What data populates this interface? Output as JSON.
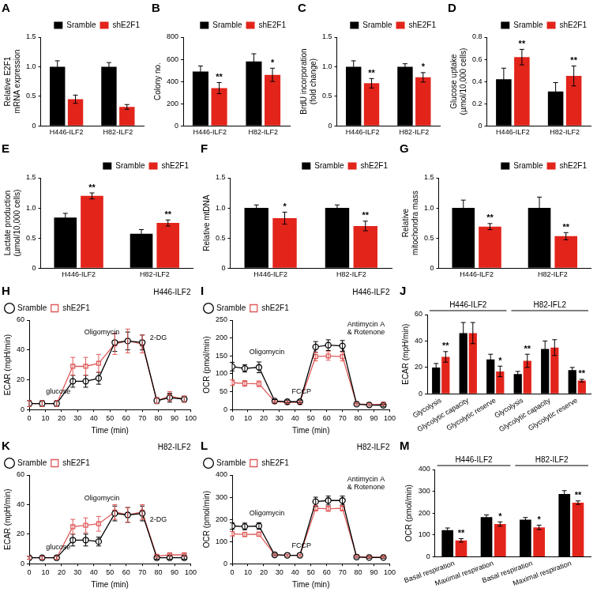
{
  "chart_data": [
    {
      "type": "bar",
      "title": "A",
      "ylabel": [
        "Relative E2F1",
        "mRNA expression"
      ],
      "categories": [
        "H446-ILF2",
        "H82-ILF2"
      ],
      "series": [
        {
          "name": "Sramble",
          "color": "#000000",
          "values": [
            1.0,
            1.0
          ],
          "errors": [
            0.1,
            0.07
          ]
        },
        {
          "name": "shE2F1",
          "color": "#e3241b",
          "values": [
            0.45,
            0.32
          ],
          "errors": [
            0.07,
            0.04
          ]
        }
      ],
      "ylim": [
        0,
        1.5
      ],
      "yticks": [
        0,
        0.5,
        {
          "value": 1,
          "label": "1.0"
        },
        1.5
      ],
      "grid": false,
      "legend": "top-right"
    },
    {
      "type": "bar",
      "title": "B",
      "ylabel": "Colony no.",
      "categories": [
        "H446-ILF2",
        "H82-ILF2"
      ],
      "series": [
        {
          "name": "Sramble",
          "color": "#000000",
          "values": [
            490,
            580
          ],
          "errors": [
            50,
            70
          ]
        },
        {
          "name": "shE2F1",
          "color": "#e3241b",
          "values": [
            340,
            460
          ],
          "errors": [
            50,
            60
          ],
          "annotations": [
            "**",
            "*"
          ]
        }
      ],
      "ylim": [
        0,
        800
      ],
      "yticks": [
        0,
        200,
        400,
        600,
        800
      ],
      "grid": false,
      "legend": "top-right"
    },
    {
      "type": "bar",
      "title": "C",
      "ylabel": [
        "BrdU incorporation",
        "(fold change)"
      ],
      "categories": [
        "H446-ILF2",
        "H82-ILF2"
      ],
      "series": [
        {
          "name": "Sramble",
          "color": "#000000",
          "values": [
            1.0,
            1.0
          ],
          "errors": [
            0.1,
            0.05
          ]
        },
        {
          "name": "shE2F1",
          "color": "#e3241b",
          "values": [
            0.72,
            0.82
          ],
          "errors": [
            0.08,
            0.08
          ],
          "annotations": [
            "**",
            "*"
          ]
        }
      ],
      "ylim": [
        0,
        1.5
      ],
      "yticks": [
        0,
        0.5,
        {
          "value": 1,
          "label": "1.0"
        },
        1.5
      ],
      "grid": false,
      "legend": "top-right"
    },
    {
      "type": "bar",
      "title": "D",
      "ylabel": [
        "Glucose uptake",
        "(µmol/10,000 cells)"
      ],
      "categories": [
        "H446-ILF2",
        "H82-ILF2"
      ],
      "series": [
        {
          "name": "Sramble",
          "color": "#000000",
          "values": [
            0.42,
            0.31
          ],
          "errors": [
            0.1,
            0.08
          ]
        },
        {
          "name": "shE2F1",
          "color": "#e3241b",
          "values": [
            0.62,
            0.45
          ],
          "errors": [
            0.07,
            0.09
          ],
          "annotations": [
            "**",
            "**"
          ]
        }
      ],
      "ylim": [
        0,
        0.8
      ],
      "yticks": [
        0,
        0.2,
        0.4,
        0.6,
        0.8
      ],
      "grid": false,
      "legend": "top-right"
    },
    {
      "type": "bar",
      "title": "E",
      "ylabel": [
        "Lactate production",
        "(µmol/10,000 cells)"
      ],
      "categories": [
        "H446-ILF2",
        "H82-ILF2"
      ],
      "series": [
        {
          "name": "Sramble",
          "color": "#000000",
          "values": [
            0.84,
            0.57
          ],
          "errors": [
            0.07,
            0.07
          ]
        },
        {
          "name": "shE2F1",
          "color": "#e3241b",
          "values": [
            1.2,
            0.75
          ],
          "errors": [
            0.05,
            0.05
          ],
          "annotations": [
            "**",
            "**"
          ]
        }
      ],
      "ylim": [
        0,
        1.5
      ],
      "yticks": [
        0,
        0.5,
        {
          "value": 1,
          "label": "1.0"
        },
        1.5
      ],
      "grid": false,
      "legend": "top-right"
    },
    {
      "type": "bar",
      "title": "F",
      "ylabel": "Relative mtDNA",
      "categories": [
        "H446-ILF2",
        "H82-ILF2"
      ],
      "series": [
        {
          "name": "Sramble",
          "color": "#000000",
          "values": [
            1.0,
            1.0
          ],
          "errors": [
            0.05,
            0.05
          ]
        },
        {
          "name": "shE2F1",
          "color": "#e3241b",
          "values": [
            0.83,
            0.7
          ],
          "errors": [
            0.1,
            0.08
          ],
          "annotations": [
            "*",
            "**"
          ]
        }
      ],
      "ylim": [
        0,
        1.5
      ],
      "yticks": [
        0,
        0.5,
        {
          "value": 1,
          "label": "1.0"
        },
        1.5
      ],
      "grid": false,
      "legend": "top-right"
    },
    {
      "type": "bar",
      "title": "G",
      "ylabel": [
        "Relative",
        "mitochondra mass"
      ],
      "categories": [
        "H446-ILF2",
        "H82-ILF2"
      ],
      "series": [
        {
          "name": "Sramble",
          "color": "#000000",
          "values": [
            1.0,
            1.0
          ],
          "errors": [
            0.13,
            0.18
          ]
        },
        {
          "name": "shE2F1",
          "color": "#e3241b",
          "values": [
            0.69,
            0.53
          ],
          "errors": [
            0.05,
            0.06
          ],
          "annotations": [
            "**",
            "**"
          ]
        }
      ],
      "ylim": [
        0,
        1.5
      ],
      "yticks": [
        0,
        0.5,
        {
          "value": 1,
          "label": "1.0"
        },
        1.5
      ],
      "grid": false,
      "legend": "top-right"
    },
    {
      "type": "line",
      "title": "H",
      "subtitle": "H446-ILF2",
      "ylabel": "ECAR (mpH/min)",
      "xlabel": "Time (min)",
      "x": [
        0,
        8,
        17,
        27,
        35,
        43,
        53,
        61,
        70,
        79,
        87,
        96
      ],
      "series": [
        {
          "name": "Sramble",
          "color": "#000000",
          "marker": "circle",
          "line_style": "solid",
          "values": [
            4,
            4,
            4,
            19,
            19,
            21,
            45,
            46,
            45,
            6,
            8,
            7
          ],
          "errors": [
            2,
            2,
            2,
            4,
            4,
            4,
            6,
            6,
            5,
            2,
            3,
            2
          ]
        },
        {
          "name": "shE2F1",
          "color": "#e05a5a",
          "marker": "square",
          "line_style": "solid",
          "values": [
            4,
            4,
            4,
            29,
            29,
            31,
            44,
            46,
            44,
            6,
            9,
            7
          ],
          "errors": [
            2,
            2,
            2,
            6,
            6,
            6,
            7,
            8,
            6,
            2,
            3,
            2
          ]
        }
      ],
      "annotations": [
        {
          "text": "glucose",
          "x": 18,
          "y": 12
        },
        {
          "text": "Oligomycin",
          "x": 45,
          "y": 52
        },
        {
          "text": "2-DG",
          "x": 80,
          "y": 48
        }
      ],
      "xlim": [
        0,
        100
      ],
      "xticks": [
        0,
        10,
        20,
        30,
        40,
        50,
        60,
        70,
        80,
        90,
        100
      ],
      "ylim": [
        0,
        60
      ],
      "yticks": [
        0,
        20,
        40,
        60
      ],
      "grid": false,
      "legend": "top-left"
    },
    {
      "type": "line",
      "title": "I",
      "subtitle": "H446-ILF2",
      "ylabel": "OCR (pmol/min)",
      "xlabel": "Time (min)",
      "x": [
        0,
        8,
        17,
        27,
        35,
        43,
        53,
        61,
        70,
        79,
        87,
        96
      ],
      "series": [
        {
          "name": "Sramble",
          "color": "#000000",
          "marker": "circle",
          "line_style": "solid",
          "values": [
            120,
            115,
            118,
            24,
            22,
            22,
            175,
            180,
            178,
            15,
            13,
            12
          ],
          "errors": [
            12,
            10,
            15,
            4,
            3,
            3,
            15,
            15,
            15,
            3,
            3,
            3
          ]
        },
        {
          "name": "shE2F1",
          "color": "#e05a5a",
          "marker": "square",
          "line_style": "solid",
          "values": [
            75,
            73,
            72,
            22,
            20,
            20,
            148,
            150,
            148,
            16,
            14,
            15
          ],
          "errors": [
            8,
            8,
            8,
            3,
            3,
            3,
            12,
            12,
            12,
            3,
            3,
            3
          ]
        }
      ],
      "annotations": [
        {
          "text": "Oligomycin",
          "x": 22,
          "y": 160
        },
        {
          "text": "FCCP",
          "x": 44,
          "y": 50
        },
        {
          "text": [
            "Antimycin A",
            "& Rotenone"
          ],
          "x": 85,
          "y": 238
        }
      ],
      "xlim": [
        0,
        100
      ],
      "xticks": [
        0,
        10,
        20,
        30,
        40,
        50,
        60,
        70,
        80,
        90,
        100
      ],
      "ylim": [
        0,
        250
      ],
      "yticks": [
        0,
        50,
        100,
        150,
        200,
        250
      ],
      "grid": false,
      "legend": "top-left"
    },
    {
      "type": "bar",
      "title": "J",
      "ylabel": "ECAR (mpH/min)",
      "categories": [
        "Glycolysis",
        "Glycolytic capacity",
        "Glycolytic reserve",
        "Glycolysis",
        "Glycolytic capacity",
        "Glycolytic reserve"
      ],
      "groups": [
        {
          "name": "H446-ILF2",
          "size": 3
        },
        {
          "name": "H82-IFL2",
          "size": 3
        }
      ],
      "series": [
        {
          "name": "Sramble",
          "color": "#000000",
          "values": [
            20,
            46,
            26,
            15,
            34,
            18
          ],
          "errors": [
            3,
            8,
            4,
            2,
            6,
            2
          ]
        },
        {
          "name": "shE2F1",
          "color": "#e3241b",
          "values": [
            28,
            46,
            17,
            25,
            35,
            10
          ],
          "errors": [
            4,
            8,
            4,
            5,
            6,
            1
          ],
          "annotations": [
            "**",
            null,
            "*",
            "**",
            null,
            "**"
          ]
        }
      ],
      "ylim": [
        0,
        60
      ],
      "yticks": [
        0,
        20,
        40,
        60
      ],
      "grid": false
    },
    {
      "type": "line",
      "title": "K",
      "subtitle": "H82-ILF2",
      "ylabel": "ECAR (mpH/min)",
      "xlabel": "Time (min)",
      "x": [
        0,
        8,
        17,
        27,
        35,
        43,
        53,
        61,
        70,
        79,
        87,
        96
      ],
      "series": [
        {
          "name": "Sramble",
          "color": "#000000",
          "marker": "circle",
          "line_style": "solid",
          "values": [
            4,
            4,
            4,
            16,
            16,
            15,
            34,
            33,
            34,
            4,
            4,
            4
          ],
          "errors": [
            1,
            1,
            1,
            4,
            4,
            3,
            5,
            5,
            5,
            1,
            1,
            1
          ]
        },
        {
          "name": "shE2F1",
          "color": "#e05a5a",
          "marker": "square",
          "line_style": "solid",
          "values": [
            4,
            4,
            4,
            25,
            26,
            27,
            35,
            33,
            35,
            5,
            6,
            6
          ],
          "errors": [
            1,
            1,
            1,
            5,
            5,
            5,
            5,
            5,
            5,
            1,
            1,
            1
          ]
        }
      ],
      "annotations": [
        {
          "text": "glucose",
          "x": 18,
          "y": 11
        },
        {
          "text": "Oligomycin",
          "x": 45,
          "y": 44
        },
        {
          "text": "2-DG",
          "x": 80,
          "y": 30
        }
      ],
      "xlim": [
        0,
        100
      ],
      "xticks": [
        0,
        10,
        20,
        30,
        40,
        50,
        60,
        70,
        80,
        90,
        100
      ],
      "ylim": [
        0,
        60
      ],
      "yticks": [
        0,
        20,
        40,
        60
      ],
      "grid": false,
      "legend": "top-left"
    },
    {
      "type": "line",
      "title": "L",
      "subtitle": "H82-ILF2",
      "ylabel": "OCR (pmol/min)",
      "xlabel": "Time (min)",
      "x": [
        0,
        8,
        17,
        27,
        35,
        43,
        53,
        61,
        70,
        79,
        87,
        96
      ],
      "series": [
        {
          "name": "Sramble",
          "color": "#000000",
          "marker": "circle",
          "line_style": "solid",
          "values": [
            170,
            168,
            170,
            40,
            38,
            38,
            280,
            285,
            285,
            30,
            28,
            28
          ],
          "errors": [
            15,
            15,
            15,
            4,
            4,
            4,
            20,
            20,
            20,
            4,
            4,
            4
          ]
        },
        {
          "name": "shE2F1",
          "color": "#e05a5a",
          "marker": "square",
          "line_style": "solid",
          "values": [
            135,
            132,
            133,
            40,
            38,
            38,
            250,
            248,
            250,
            32,
            30,
            30
          ],
          "errors": [
            10,
            10,
            10,
            4,
            4,
            4,
            12,
            12,
            12,
            4,
            4,
            4
          ]
        }
      ],
      "annotations": [
        {
          "text": "Oligomycin",
          "x": 22,
          "y": 228
        },
        {
          "text": "FCCP",
          "x": 44,
          "y": 80
        },
        {
          "text": [
            "Antimycin A",
            "& Rotenone"
          ],
          "x": 85,
          "y": 380
        }
      ],
      "xlim": [
        0,
        100
      ],
      "xticks": [
        0,
        10,
        20,
        30,
        40,
        50,
        60,
        70,
        80,
        90,
        100
      ],
      "ylim": [
        0,
        400
      ],
      "yticks": [
        0,
        100,
        200,
        300,
        400
      ],
      "grid": false,
      "legend": "top-left"
    },
    {
      "type": "bar",
      "title": "M",
      "ylabel": "OCR (pmol/min)",
      "categories": [
        "Basal respiration",
        "Maximal respiration",
        "Basal respiration",
        "Maximal respiration"
      ],
      "groups": [
        {
          "name": "H446-ILF2",
          "size": 2
        },
        {
          "name": "H82-ILF2",
          "size": 2
        }
      ],
      "series": [
        {
          "name": "Sramble",
          "color": "#000000",
          "values": [
            122,
            182,
            170,
            288
          ],
          "errors": [
            10,
            10,
            10,
            15
          ]
        },
        {
          "name": "shE2F1",
          "color": "#e3241b",
          "values": [
            75,
            150,
            135,
            248
          ],
          "errors": [
            8,
            10,
            10,
            8
          ],
          "annotations": [
            "**",
            "*",
            "*",
            "**"
          ]
        }
      ],
      "ylim": [
        0,
        400
      ],
      "yticks": [
        0,
        100,
        200,
        300,
        400
      ],
      "grid": false
    }
  ]
}
